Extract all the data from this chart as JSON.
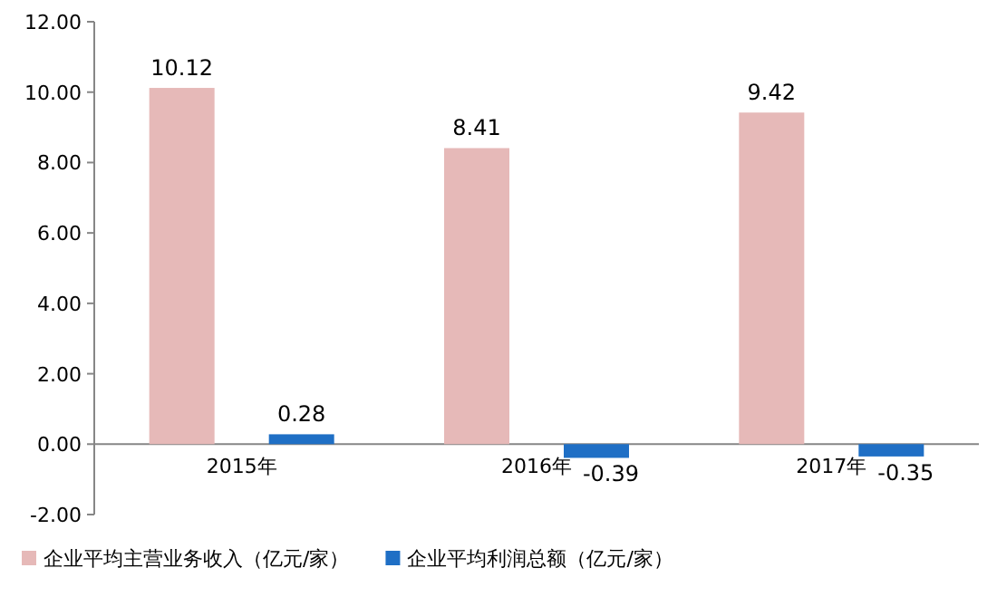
{
  "chart_data": {
    "type": "bar",
    "categories": [
      "2015年",
      "2016年",
      "2017年"
    ],
    "series": [
      {
        "name": "企业平均主营业务收入（亿元/家）",
        "color": "#e6b9b8",
        "values": [
          10.12,
          8.41,
          9.42
        ]
      },
      {
        "name": "企业平均利润总额（亿元/家）",
        "color": "#1f6fc5",
        "values": [
          0.28,
          -0.39,
          -0.35
        ]
      }
    ],
    "ylim": [
      -2,
      12
    ],
    "yticks": [
      {
        "value": -2,
        "label": "-2.00"
      },
      {
        "value": 0,
        "label": "0.00"
      },
      {
        "value": 2,
        "label": "2.00"
      },
      {
        "value": 4,
        "label": "4.00"
      },
      {
        "value": 6,
        "label": "6.00"
      },
      {
        "value": 8,
        "label": "8.00"
      },
      {
        "value": 10,
        "label": "10.00"
      },
      {
        "value": 12,
        "label": "12.00"
      }
    ],
    "data_labels": true,
    "legend": "bottom"
  }
}
